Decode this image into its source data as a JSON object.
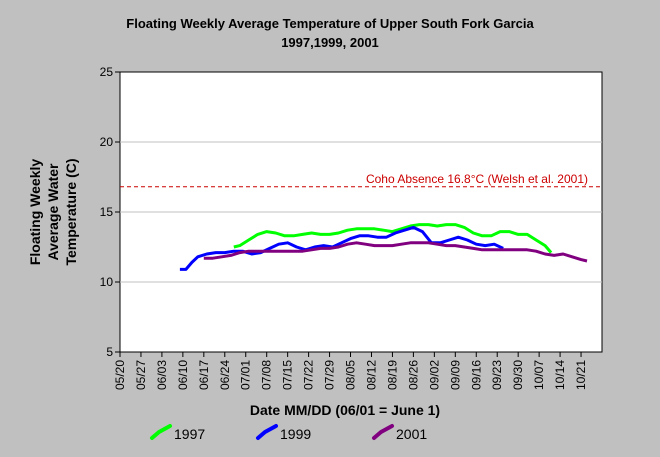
{
  "chart_data": {
    "type": "line",
    "title": "Floating Weekly Average Temperature of Upper South Fork Garcia",
    "subtitle": "1997,1999, 2001",
    "xlabel": "Date MM/DD (06/01 = June 1)",
    "ylabel_lines": [
      "Floating Weekly",
      "Average Water",
      "Temperature (C)"
    ],
    "x_ticks": [
      "05/20",
      "05/27",
      "06/03",
      "06/10",
      "06/17",
      "06/24",
      "07/01",
      "07/08",
      "07/15",
      "07/22",
      "07/29",
      "08/05",
      "08/12",
      "08/19",
      "08/26",
      "09/02",
      "09/09",
      "09/16",
      "09/23",
      "09/30",
      "10/07",
      "10/14",
      "10/21"
    ],
    "xlim": [
      "05/20",
      "10/28"
    ],
    "ylim": [
      5,
      25
    ],
    "y_ticks": [
      5,
      10,
      15,
      20,
      25
    ],
    "grid": true,
    "legend_position": "bottom",
    "reference_line": {
      "value": 16.8,
      "label": "Coho Absence 16.8°C (Welsh et al. 2001)",
      "color": "#cc0000"
    },
    "series": [
      {
        "name": "1997",
        "color": "#00ff00",
        "points": [
          [
            "06/27",
            12.5
          ],
          [
            "06/29",
            12.6
          ],
          [
            "07/02",
            13.0
          ],
          [
            "07/05",
            13.4
          ],
          [
            "07/08",
            13.6
          ],
          [
            "07/11",
            13.5
          ],
          [
            "07/14",
            13.3
          ],
          [
            "07/17",
            13.3
          ],
          [
            "07/20",
            13.4
          ],
          [
            "07/23",
            13.5
          ],
          [
            "07/26",
            13.4
          ],
          [
            "07/29",
            13.4
          ],
          [
            "08/01",
            13.5
          ],
          [
            "08/04",
            13.7
          ],
          [
            "08/07",
            13.8
          ],
          [
            "08/10",
            13.8
          ],
          [
            "08/13",
            13.8
          ],
          [
            "08/16",
            13.7
          ],
          [
            "08/19",
            13.6
          ],
          [
            "08/22",
            13.8
          ],
          [
            "08/25",
            14.0
          ],
          [
            "08/28",
            14.1
          ],
          [
            "08/31",
            14.1
          ],
          [
            "09/03",
            14.0
          ],
          [
            "09/06",
            14.1
          ],
          [
            "09/09",
            14.1
          ],
          [
            "09/12",
            13.9
          ],
          [
            "09/15",
            13.5
          ],
          [
            "09/18",
            13.3
          ],
          [
            "09/21",
            13.3
          ],
          [
            "09/24",
            13.6
          ],
          [
            "09/27",
            13.6
          ],
          [
            "09/30",
            13.4
          ],
          [
            "10/03",
            13.4
          ],
          [
            "10/06",
            13.0
          ],
          [
            "10/09",
            12.6
          ],
          [
            "10/11",
            12.1
          ]
        ]
      },
      {
        "name": "1999",
        "color": "#0000ff",
        "points": [
          [
            "06/09",
            10.9
          ],
          [
            "06/11",
            10.9
          ],
          [
            "06/13",
            11.4
          ],
          [
            "06/15",
            11.8
          ],
          [
            "06/18",
            12.0
          ],
          [
            "06/21",
            12.1
          ],
          [
            "06/24",
            12.1
          ],
          [
            "06/27",
            12.2
          ],
          [
            "06/30",
            12.2
          ],
          [
            "07/03",
            12.0
          ],
          [
            "07/06",
            12.1
          ],
          [
            "07/09",
            12.4
          ],
          [
            "07/12",
            12.7
          ],
          [
            "07/15",
            12.8
          ],
          [
            "07/18",
            12.5
          ],
          [
            "07/21",
            12.3
          ],
          [
            "07/24",
            12.5
          ],
          [
            "07/27",
            12.6
          ],
          [
            "07/30",
            12.5
          ],
          [
            "08/02",
            12.8
          ],
          [
            "08/05",
            13.1
          ],
          [
            "08/08",
            13.3
          ],
          [
            "08/11",
            13.3
          ],
          [
            "08/14",
            13.2
          ],
          [
            "08/17",
            13.2
          ],
          [
            "08/20",
            13.5
          ],
          [
            "08/23",
            13.7
          ],
          [
            "08/26",
            13.9
          ],
          [
            "08/29",
            13.6
          ],
          [
            "09/01",
            12.8
          ],
          [
            "09/04",
            12.8
          ],
          [
            "09/07",
            13.0
          ],
          [
            "09/10",
            13.2
          ],
          [
            "09/13",
            13.0
          ],
          [
            "09/16",
            12.7
          ],
          [
            "09/19",
            12.6
          ],
          [
            "09/22",
            12.7
          ],
          [
            "09/25",
            12.4
          ]
        ]
      },
      {
        "name": "2001",
        "color": "#800080",
        "points": [
          [
            "06/17",
            11.7
          ],
          [
            "06/20",
            11.7
          ],
          [
            "06/23",
            11.8
          ],
          [
            "06/26",
            11.9
          ],
          [
            "06/29",
            12.1
          ],
          [
            "07/02",
            12.2
          ],
          [
            "07/05",
            12.2
          ],
          [
            "07/08",
            12.2
          ],
          [
            "07/11",
            12.2
          ],
          [
            "07/14",
            12.2
          ],
          [
            "07/17",
            12.2
          ],
          [
            "07/20",
            12.2
          ],
          [
            "07/23",
            12.3
          ],
          [
            "07/26",
            12.4
          ],
          [
            "07/29",
            12.4
          ],
          [
            "08/01",
            12.5
          ],
          [
            "08/04",
            12.7
          ],
          [
            "08/07",
            12.8
          ],
          [
            "08/10",
            12.7
          ],
          [
            "08/13",
            12.6
          ],
          [
            "08/16",
            12.6
          ],
          [
            "08/19",
            12.6
          ],
          [
            "08/22",
            12.7
          ],
          [
            "08/25",
            12.8
          ],
          [
            "08/28",
            12.8
          ],
          [
            "08/31",
            12.8
          ],
          [
            "09/03",
            12.7
          ],
          [
            "09/06",
            12.6
          ],
          [
            "09/09",
            12.6
          ],
          [
            "09/12",
            12.5
          ],
          [
            "09/15",
            12.4
          ],
          [
            "09/18",
            12.3
          ],
          [
            "09/21",
            12.3
          ],
          [
            "09/24",
            12.3
          ],
          [
            "09/27",
            12.3
          ],
          [
            "09/30",
            12.3
          ],
          [
            "10/03",
            12.3
          ],
          [
            "10/06",
            12.2
          ],
          [
            "10/09",
            12.0
          ],
          [
            "10/12",
            11.9
          ],
          [
            "10/15",
            12.0
          ],
          [
            "10/18",
            11.8
          ],
          [
            "10/21",
            11.6
          ],
          [
            "10/23",
            11.5
          ]
        ]
      }
    ]
  }
}
